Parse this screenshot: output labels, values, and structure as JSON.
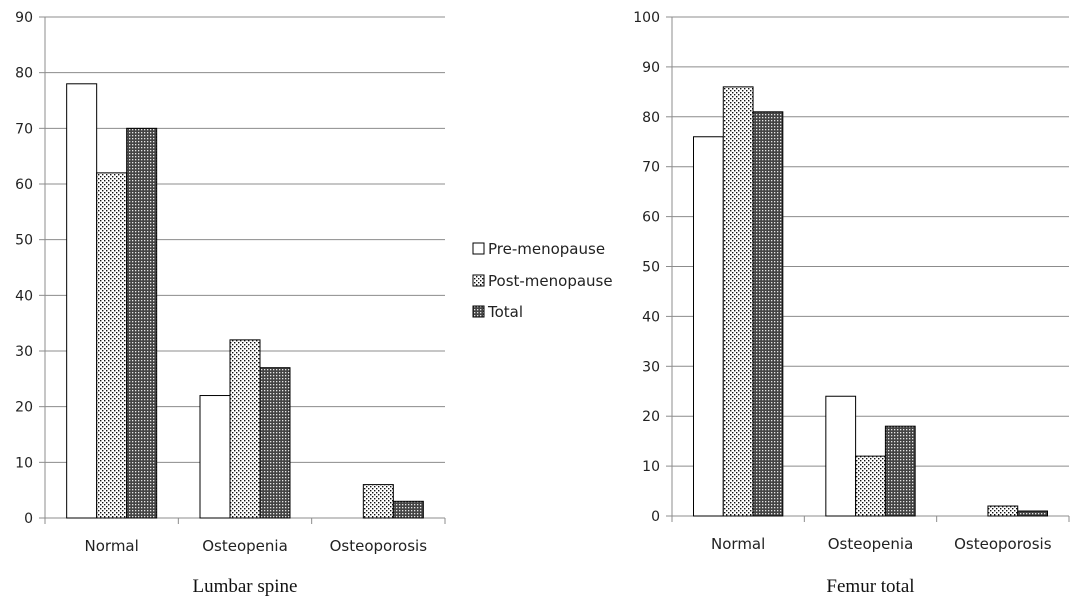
{
  "legend": {
    "items": [
      {
        "label": "Pre-menopause",
        "pattern": "solid-white"
      },
      {
        "label": "Post-menopause",
        "pattern": "dots"
      },
      {
        "label": "Total",
        "pattern": "dense-checker"
      }
    ]
  },
  "colors": {
    "grid": "#8c8c8c",
    "bar_stroke": "#000000",
    "axis": "#8c8c8c"
  },
  "chart_data": [
    {
      "type": "bar",
      "title": "Lumbar spine",
      "xlabel": "",
      "ylabel": "",
      "categories": [
        "Normal",
        "Osteopenia",
        "Osteoporosis"
      ],
      "series": [
        {
          "name": "Pre-menopause",
          "values": [
            78,
            22,
            0
          ]
        },
        {
          "name": "Post-menopause",
          "values": [
            62,
            32,
            6
          ]
        },
        {
          "name": "Total",
          "values": [
            70,
            27,
            3
          ]
        }
      ],
      "ylim": [
        0,
        90
      ],
      "yticks": [
        0,
        10,
        20,
        30,
        40,
        50,
        60,
        70,
        80,
        90
      ],
      "grid": true,
      "legend_position": "right"
    },
    {
      "type": "bar",
      "title": "Femur total",
      "xlabel": "",
      "ylabel": "",
      "categories": [
        "Normal",
        "Osteopenia",
        "Osteoporosis"
      ],
      "series": [
        {
          "name": "Pre-menopause",
          "values": [
            76,
            24,
            0
          ]
        },
        {
          "name": "Post-menopause",
          "values": [
            86,
            12,
            2
          ]
        },
        {
          "name": "Total",
          "values": [
            81,
            18,
            1
          ]
        }
      ],
      "ylim": [
        0,
        100
      ],
      "yticks": [
        0,
        10,
        20,
        30,
        40,
        50,
        60,
        70,
        80,
        90,
        100
      ],
      "grid": true,
      "legend_position": "left"
    }
  ]
}
